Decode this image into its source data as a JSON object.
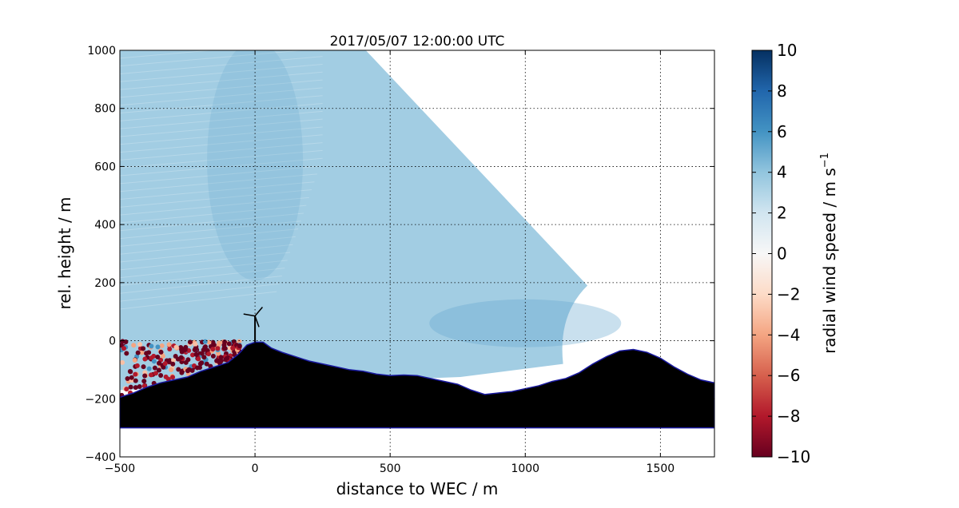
{
  "chart_data": {
    "type": "heatmap",
    "title": "2017/05/07 12:00:00 UTC",
    "xlabel": "distance to WEC / m",
    "ylabel": "rel. height / m",
    "xlim": [
      -500,
      1700
    ],
    "ylim": [
      -400,
      1000
    ],
    "xticks": [
      -500,
      0,
      500,
      1000,
      1500
    ],
    "xtick_labels": [
      "−500",
      "0",
      "500",
      "1000",
      "1500"
    ],
    "yticks": [
      -400,
      -200,
      0,
      200,
      400,
      600,
      800,
      1000
    ],
    "ytick_labels": [
      "−400",
      "−200",
      "0",
      "200",
      "400",
      "600",
      "800",
      "1000"
    ],
    "grid": true,
    "colorbar": {
      "label_main": "radial wind speed / m s",
      "label_sup": "−1",
      "vmin": -10,
      "vmax": 10,
      "ticks": [
        10,
        8,
        6,
        4,
        2,
        0,
        -2,
        -4,
        -6,
        -8,
        -10
      ],
      "tick_labels": [
        "10",
        "8",
        "6",
        "4",
        "2",
        "0",
        "−2",
        "−4",
        "−6",
        "−8",
        "−10"
      ],
      "colormap": [
        "#67001f",
        "#b2182b",
        "#d6604d",
        "#f4a582",
        "#fddbc7",
        "#f7f7f7",
        "#d1e5f0",
        "#92c5de",
        "#4393c3",
        "#2166ac",
        "#053061"
      ]
    },
    "scan_sector": {
      "typical_speed": 3.5,
      "max_range_x": 1230,
      "top_edge_x": 410
    },
    "terrain_profile": {
      "x": [
        -500,
        -450,
        -400,
        -350,
        -300,
        -250,
        -200,
        -150,
        -100,
        -60,
        -30,
        0,
        30,
        60,
        100,
        150,
        200,
        250,
        300,
        350,
        400,
        450,
        500,
        550,
        600,
        650,
        700,
        750,
        800,
        850,
        900,
        950,
        1000,
        1050,
        1100,
        1150,
        1200,
        1250,
        1300,
        1350,
        1400,
        1450,
        1500,
        1550,
        1600,
        1650,
        1700
      ],
      "y": [
        -195,
        -180,
        -160,
        -145,
        -135,
        -125,
        -105,
        -90,
        -75,
        -45,
        -15,
        -5,
        -5,
        -25,
        -40,
        -55,
        -70,
        -80,
        -90,
        -100,
        -105,
        -115,
        -120,
        -118,
        -120,
        -130,
        -140,
        -150,
        -170,
        -185,
        -180,
        -175,
        -165,
        -155,
        -140,
        -130,
        -110,
        -80,
        -55,
        -35,
        -30,
        -40,
        -60,
        -90,
        -115,
        -135,
        -145
      ],
      "fill_to": -300,
      "fill_color": "#000000",
      "edge_color": "#1a1aa0"
    },
    "turbine": {
      "x": 0,
      "hub_height": 85,
      "rotor_radius": 40,
      "base": -5
    }
  }
}
